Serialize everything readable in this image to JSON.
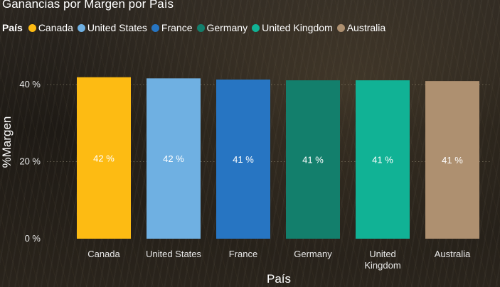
{
  "colors": {
    "Canada": "#FDBB13",
    "United States": "#6FB0E2",
    "France": "#2775C2",
    "Germany": "#137F6C",
    "United Kingdom": "#11B295",
    "Australia": "#AE9070"
  },
  "chart_data": {
    "type": "bar",
    "title": "Ganancias por Margen por País",
    "legend_title": "País",
    "legend_position": "top-left",
    "grid": true,
    "categories": [
      "Canada",
      "United States",
      "France",
      "Germany",
      "United Kingdom",
      "Australia"
    ],
    "category_labels": [
      [
        "Canada"
      ],
      [
        "United States"
      ],
      [
        "France"
      ],
      [
        "Germany"
      ],
      [
        "United",
        "Kingdom"
      ],
      [
        "Australia"
      ]
    ],
    "values": [
      42,
      42,
      41,
      41,
      41,
      41
    ],
    "data_labels": [
      "42 %",
      "42 %",
      "41 %",
      "41 %",
      "41 %",
      "41 %"
    ],
    "xlabel": "País",
    "ylabel": "%Margen",
    "ylim": [
      0,
      40
    ],
    "yticks": [
      0,
      20,
      40
    ],
    "ytick_labels": [
      "0 %",
      "20 %",
      "40 %"
    ],
    "exact_values": [
      41.9,
      41.6,
      41.3,
      41.1,
      41.1,
      40.9
    ]
  }
}
